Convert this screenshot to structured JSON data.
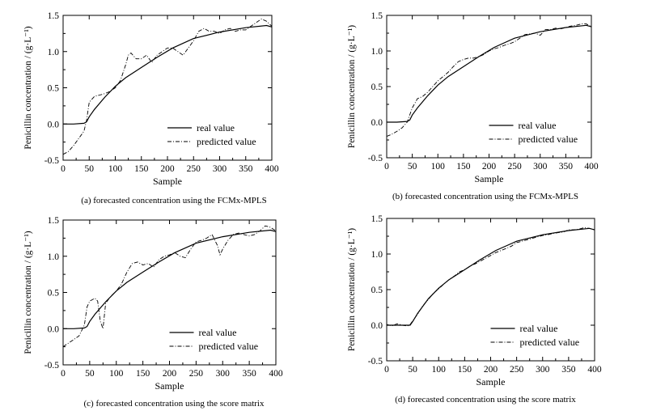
{
  "chart_data": [
    {
      "type": "line",
      "caption": "(a) forecasted concentration using the FCMx-MPLS",
      "xlabel": "Sample",
      "ylabel": "Penicillin concentration / (g·L⁻¹)",
      "xlim": [
        0,
        400
      ],
      "ylim": [
        -0.5,
        1.5
      ],
      "xticks": [
        "0",
        "50",
        "100",
        "150",
        "200",
        "250",
        "300",
        "350",
        "400"
      ],
      "yticks": [
        "-0.5",
        "0.0",
        "0.5",
        "1.0",
        "1.5"
      ],
      "legend_position": "bottom-right",
      "grid": false,
      "series": [
        {
          "name": "real value",
          "style": "solid",
          "x": [
            0,
            20,
            40,
            45,
            50,
            60,
            80,
            100,
            120,
            150,
            180,
            210,
            250,
            300,
            350,
            390,
            400
          ],
          "y": [
            0.0,
            0.0,
            0.01,
            0.03,
            0.1,
            0.2,
            0.37,
            0.52,
            0.64,
            0.78,
            0.92,
            1.05,
            1.18,
            1.27,
            1.33,
            1.36,
            1.34
          ]
        },
        {
          "name": "predicted value",
          "style": "dashdot",
          "x": [
            0,
            10,
            20,
            30,
            40,
            45,
            50,
            60,
            70,
            80,
            90,
            100,
            110,
            120,
            125,
            130,
            140,
            150,
            160,
            170,
            180,
            190,
            200,
            210,
            220,
            230,
            240,
            250,
            260,
            270,
            280,
            290,
            300,
            310,
            320,
            330,
            340,
            350,
            360,
            370,
            380,
            390,
            400
          ],
          "y": [
            -0.42,
            -0.38,
            -0.3,
            -0.2,
            -0.1,
            0.05,
            0.3,
            0.38,
            0.4,
            0.42,
            0.45,
            0.5,
            0.6,
            0.82,
            0.95,
            0.98,
            0.9,
            0.9,
            0.95,
            0.85,
            0.95,
            1.0,
            1.05,
            1.05,
            1.0,
            0.95,
            1.05,
            1.15,
            1.28,
            1.32,
            1.28,
            1.28,
            1.25,
            1.3,
            1.32,
            1.28,
            1.3,
            1.3,
            1.35,
            1.4,
            1.45,
            1.42,
            1.35
          ]
        }
      ]
    },
    {
      "type": "line",
      "caption": "(b) forecasted concentration using the FCMx-MPLS",
      "xlabel": "Sample",
      "ylabel": "Penicillin concentration / (g·L⁻¹)",
      "xlim": [
        0,
        400
      ],
      "ylim": [
        -0.5,
        1.5
      ],
      "xticks": [
        "0",
        "50",
        "100",
        "150",
        "200",
        "250",
        "300",
        "350",
        "400"
      ],
      "yticks": [
        "-0.5",
        "0.0",
        "0.5",
        "1.0",
        "1.5"
      ],
      "legend_position": "bottom-right",
      "grid": false,
      "series": [
        {
          "name": "real value",
          "style": "solid",
          "x": [
            0,
            20,
            40,
            45,
            50,
            60,
            80,
            100,
            120,
            150,
            180,
            210,
            250,
            300,
            350,
            390,
            400
          ],
          "y": [
            0.0,
            0.0,
            0.01,
            0.03,
            0.1,
            0.2,
            0.37,
            0.52,
            0.64,
            0.78,
            0.92,
            1.05,
            1.18,
            1.27,
            1.33,
            1.36,
            1.34
          ]
        },
        {
          "name": "predicted value",
          "style": "dashdot",
          "x": [
            0,
            10,
            20,
            30,
            40,
            50,
            60,
            70,
            80,
            90,
            100,
            110,
            120,
            130,
            140,
            150,
            160,
            170,
            180,
            190,
            200,
            210,
            220,
            230,
            240,
            250,
            260,
            270,
            280,
            290,
            300,
            310,
            320,
            330,
            340,
            350,
            360,
            370,
            380,
            390,
            400
          ],
          "y": [
            -0.2,
            -0.17,
            -0.13,
            -0.08,
            0.0,
            0.2,
            0.33,
            0.36,
            0.42,
            0.5,
            0.58,
            0.64,
            0.7,
            0.78,
            0.85,
            0.88,
            0.9,
            0.9,
            0.92,
            0.95,
            1.0,
            1.03,
            1.05,
            1.08,
            1.1,
            1.13,
            1.18,
            1.23,
            1.24,
            1.25,
            1.22,
            1.3,
            1.3,
            1.32,
            1.31,
            1.33,
            1.35,
            1.36,
            1.38,
            1.38,
            1.34
          ]
        }
      ]
    },
    {
      "type": "line",
      "caption": "(c) forecasted concentration using the score matrix",
      "xlabel": "Sample",
      "ylabel": "Penicillin concentration / (g·L⁻¹)",
      "xlim": [
        0,
        400
      ],
      "ylim": [
        -0.5,
        1.5
      ],
      "xticks": [
        "0",
        "50",
        "100",
        "150",
        "200",
        "250",
        "300",
        "350",
        "400"
      ],
      "yticks": [
        "-0.5",
        "0.0",
        "0.5",
        "1.0",
        "1.5"
      ],
      "legend_position": "bottom-right",
      "grid": false,
      "series": [
        {
          "name": "real value",
          "style": "solid",
          "x": [
            0,
            20,
            40,
            45,
            50,
            60,
            80,
            100,
            120,
            150,
            180,
            210,
            250,
            300,
            350,
            390,
            400
          ],
          "y": [
            0.0,
            0.0,
            0.01,
            0.03,
            0.1,
            0.2,
            0.37,
            0.52,
            0.64,
            0.78,
            0.92,
            1.05,
            1.18,
            1.27,
            1.33,
            1.36,
            1.34
          ]
        },
        {
          "name": "predicted value",
          "style": "dashdot",
          "x": [
            0,
            10,
            20,
            30,
            40,
            45,
            50,
            60,
            65,
            70,
            75,
            80,
            90,
            100,
            110,
            120,
            130,
            140,
            150,
            160,
            170,
            180,
            190,
            200,
            210,
            220,
            230,
            240,
            250,
            260,
            270,
            280,
            290,
            295,
            300,
            310,
            320,
            330,
            340,
            350,
            360,
            370,
            380,
            390,
            400
          ],
          "y": [
            -0.25,
            -0.2,
            -0.15,
            -0.1,
            0.05,
            0.3,
            0.38,
            0.42,
            0.38,
            0.1,
            0.0,
            0.35,
            0.45,
            0.52,
            0.62,
            0.78,
            0.9,
            0.92,
            0.88,
            0.9,
            0.85,
            0.95,
            1.0,
            1.02,
            1.05,
            1.0,
            0.98,
            1.1,
            1.2,
            1.22,
            1.25,
            1.3,
            1.15,
            1.02,
            1.1,
            1.22,
            1.3,
            1.32,
            1.3,
            1.28,
            1.3,
            1.35,
            1.42,
            1.4,
            1.35
          ]
        }
      ]
    },
    {
      "type": "line",
      "caption": "(d) forecasted concentration using the score matrix",
      "xlabel": "Sample",
      "ylabel": "Penicillin concentration / (g·L⁻¹)",
      "xlim": [
        0,
        400
      ],
      "ylim": [
        -0.5,
        1.5
      ],
      "xticks": [
        "0",
        "50",
        "100",
        "150",
        "200",
        "250",
        "300",
        "350",
        "400"
      ],
      "yticks": [
        "-0.5",
        "0.0",
        "0.5",
        "1.0",
        "1.5"
      ],
      "legend_position": "bottom-right",
      "grid": false,
      "series": [
        {
          "name": "real value",
          "style": "solid",
          "x": [
            0,
            20,
            40,
            45,
            50,
            60,
            80,
            100,
            120,
            150,
            180,
            210,
            250,
            300,
            350,
            390,
            400
          ],
          "y": [
            0.0,
            0.0,
            0.0,
            0.0,
            0.05,
            0.17,
            0.37,
            0.52,
            0.64,
            0.78,
            0.92,
            1.05,
            1.18,
            1.27,
            1.33,
            1.36,
            1.34
          ]
        },
        {
          "name": "predicted value",
          "style": "dashdot",
          "x": [
            0,
            10,
            20,
            30,
            40,
            45,
            50,
            60,
            70,
            80,
            90,
            100,
            110,
            120,
            130,
            140,
            150,
            160,
            170,
            180,
            190,
            200,
            210,
            220,
            230,
            240,
            250,
            260,
            270,
            280,
            290,
            300,
            310,
            320,
            330,
            340,
            350,
            360,
            370,
            380,
            390,
            400
          ],
          "y": [
            0.01,
            -0.01,
            0.02,
            0.0,
            -0.01,
            0.01,
            0.06,
            0.16,
            0.28,
            0.36,
            0.45,
            0.51,
            0.58,
            0.64,
            0.69,
            0.75,
            0.78,
            0.83,
            0.86,
            0.9,
            0.94,
            0.98,
            1.02,
            1.05,
            1.08,
            1.11,
            1.16,
            1.18,
            1.2,
            1.22,
            1.24,
            1.26,
            1.27,
            1.29,
            1.3,
            1.31,
            1.34,
            1.34,
            1.35,
            1.37,
            1.36,
            1.34
          ]
        }
      ]
    }
  ]
}
